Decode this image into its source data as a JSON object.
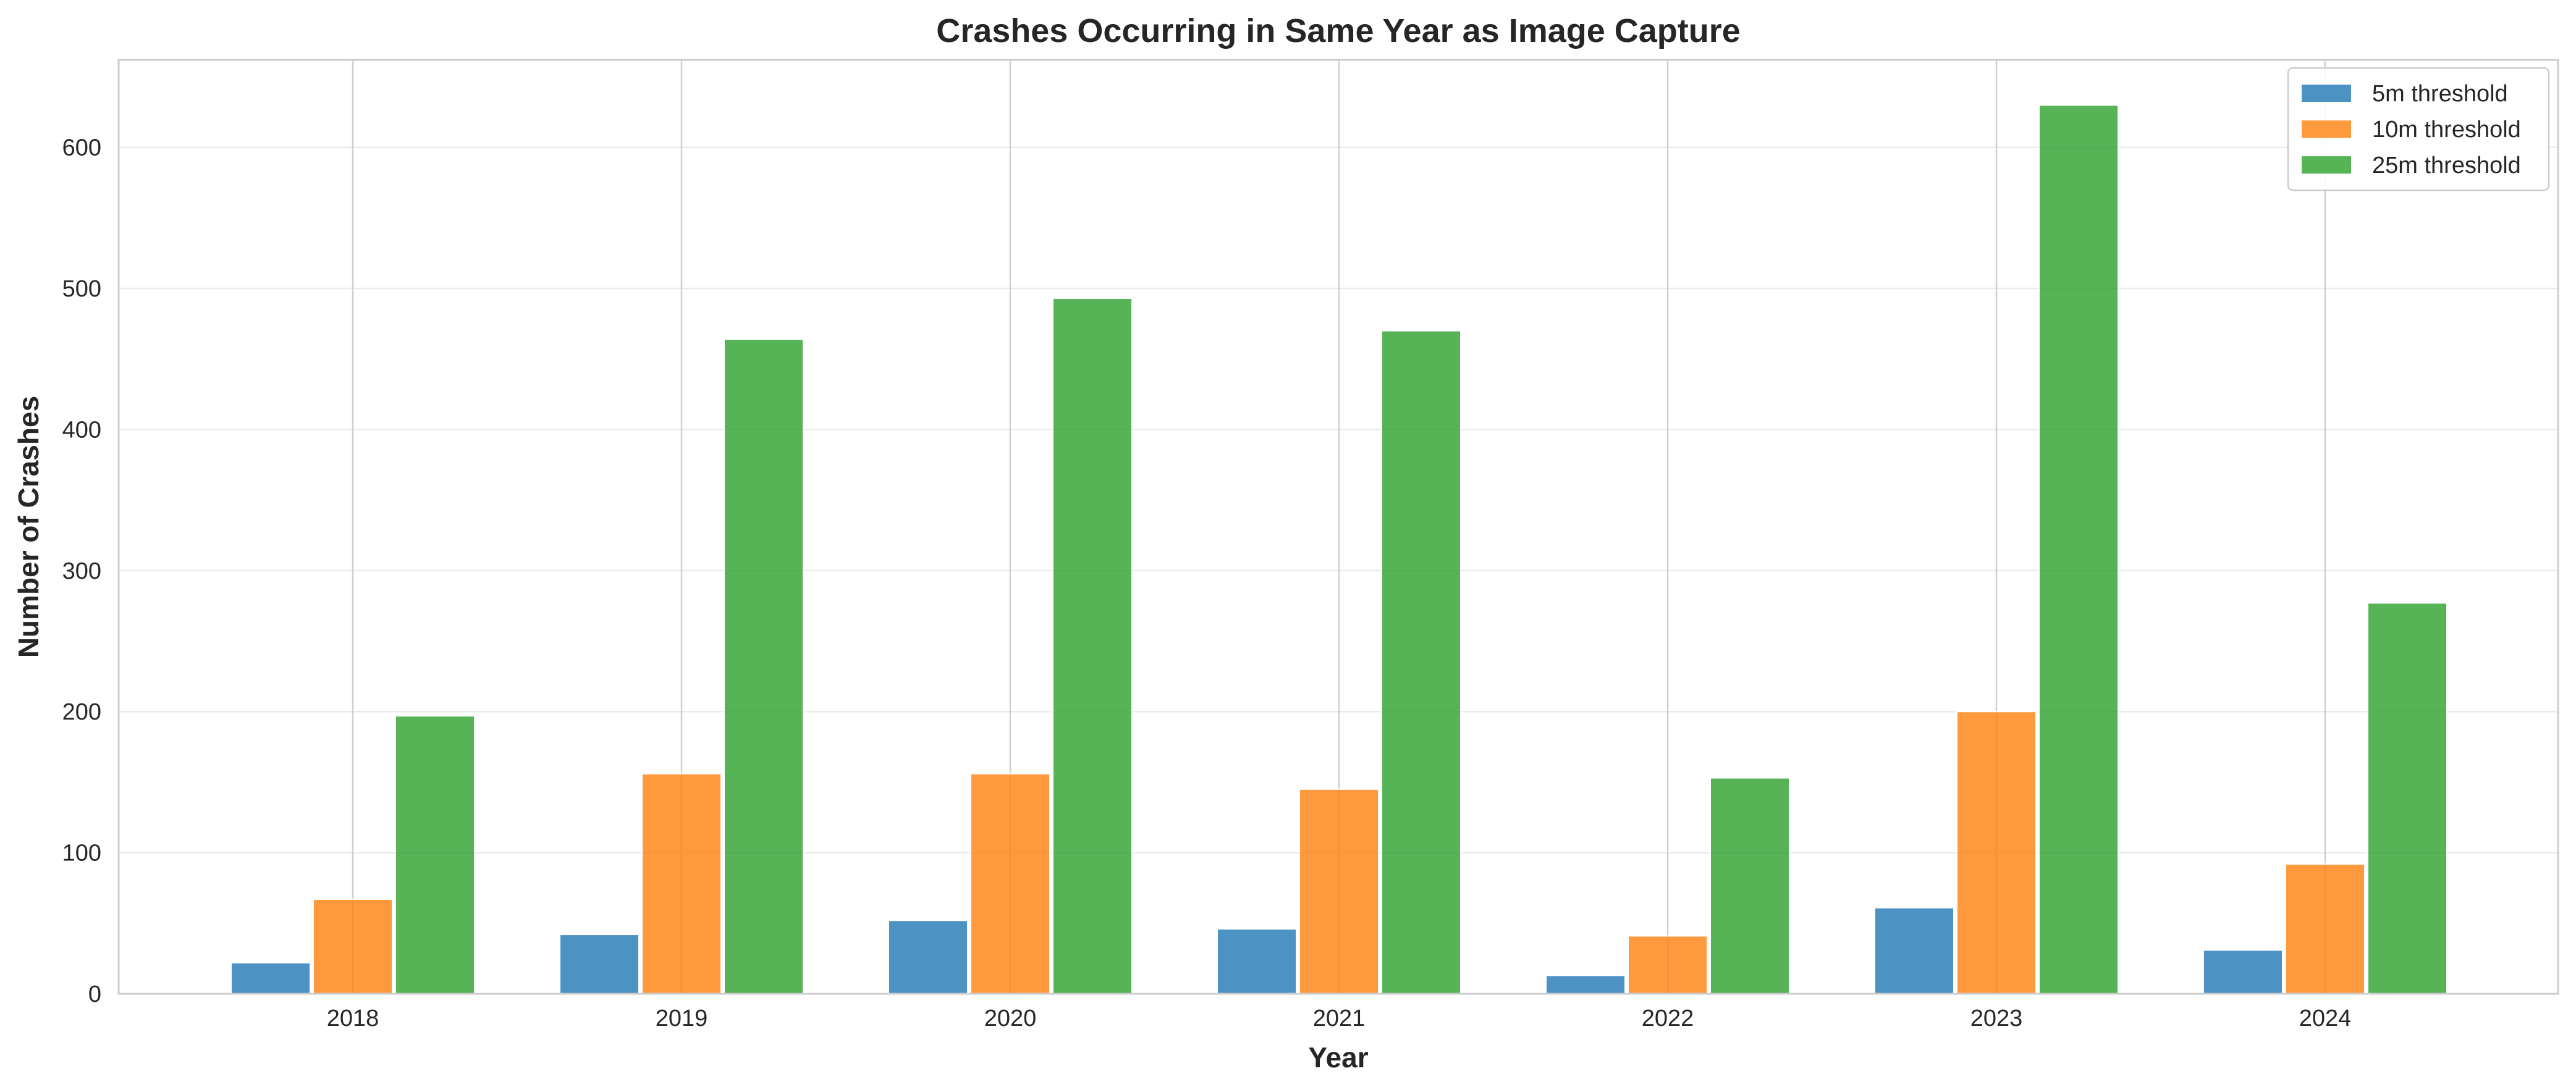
{
  "chart_data": {
    "type": "bar",
    "title": "Crashes Occurring in Same Year as Image Capture",
    "xlabel": "Year",
    "ylabel": "Number of Crashes",
    "categories": [
      "2018",
      "2019",
      "2020",
      "2021",
      "2022",
      "2023",
      "2024"
    ],
    "series": [
      {
        "name": "5m threshold",
        "color": "#1f77b4",
        "values": [
          22,
          42,
          52,
          46,
          13,
          61,
          31
        ]
      },
      {
        "name": "10m threshold",
        "color": "#ff7f0e",
        "values": [
          67,
          156,
          156,
          145,
          41,
          200,
          92
        ]
      },
      {
        "name": "25m threshold",
        "color": "#2ca02c",
        "values": [
          197,
          464,
          493,
          470,
          153,
          630,
          277
        ]
      }
    ],
    "ylim": [
      0,
      662
    ],
    "yticks": [
      0,
      100,
      200,
      300,
      400,
      500,
      600
    ],
    "grid": true,
    "legend_position": "top-right"
  }
}
